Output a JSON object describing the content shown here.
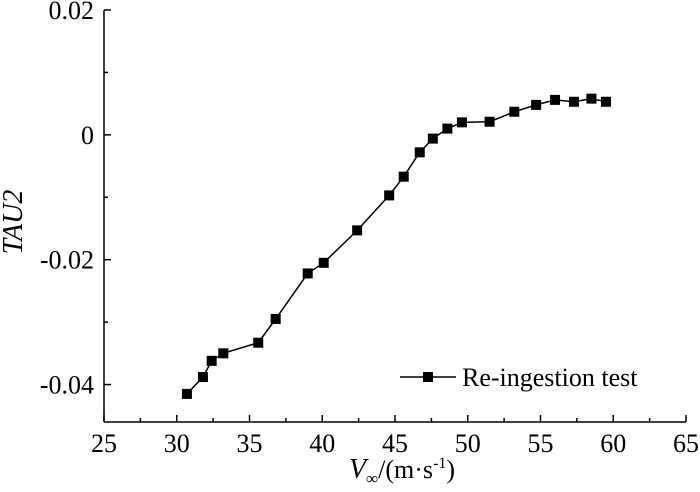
{
  "chart_data": {
    "type": "line",
    "ylabel": "TAU2",
    "xlabel_main": "V",
    "xlabel_sub": "∞",
    "xlabel_unit_pre": "/(m·s",
    "xlabel_unit_sup": "-1",
    "xlabel_unit_post": ")",
    "xlim": [
      25,
      65
    ],
    "ylim": [
      -0.046,
      0.02
    ],
    "xticks": [
      25,
      30,
      35,
      40,
      45,
      50,
      55,
      60,
      65
    ],
    "xtick_labels": [
      "25",
      "30",
      "35",
      "40",
      "45",
      "50",
      "55",
      "60",
      "65"
    ],
    "yticks": [
      -0.04,
      -0.02,
      0,
      0.02
    ],
    "ytick_labels": [
      "-0.04",
      "-0.02",
      "0",
      "0.02"
    ],
    "grid": false,
    "legend_position": "bottom-right",
    "color": "#000000",
    "series": [
      {
        "name": "Re-ingestion test",
        "marker": "square",
        "x": [
          30.7,
          31.8,
          32.4,
          33.2,
          35.6,
          36.8,
          39.0,
          40.1,
          42.4,
          44.6,
          45.6,
          46.7,
          47.6,
          48.6,
          49.6,
          51.5,
          53.2,
          54.7,
          56.0,
          57.3,
          58.5,
          59.5
        ],
        "y": [
          -0.0415,
          -0.0388,
          -0.0362,
          -0.035,
          -0.0333,
          -0.0295,
          -0.0222,
          -0.0205,
          -0.0153,
          -0.0097,
          -0.0067,
          -0.0028,
          -0.0006,
          0.001,
          0.002,
          0.0021,
          0.0037,
          0.0048,
          0.0056,
          0.0053,
          0.0058,
          0.0053
        ]
      }
    ]
  }
}
